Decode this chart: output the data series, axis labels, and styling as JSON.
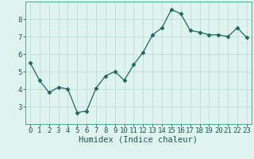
{
  "x": [
    0,
    1,
    2,
    3,
    4,
    5,
    6,
    7,
    8,
    9,
    10,
    11,
    12,
    13,
    14,
    15,
    16,
    17,
    18,
    19,
    20,
    21,
    22,
    23
  ],
  "y": [
    5.5,
    4.5,
    3.8,
    4.1,
    4.0,
    2.65,
    2.75,
    4.05,
    4.75,
    5.0,
    4.5,
    5.4,
    6.1,
    7.1,
    7.5,
    8.55,
    8.3,
    7.35,
    7.25,
    7.1,
    7.1,
    7.0,
    7.5,
    6.95
  ],
  "line_color": "#1a6b5e",
  "marker": "D",
  "marker_size": 2.5,
  "bg_color": "#dff3ef",
  "grid_color": "#c0ddd8",
  "xlabel": "Humidex (Indice chaleur)",
  "ylim": [
    2.0,
    9.0
  ],
  "xlim": [
    -0.5,
    23.5
  ],
  "yticks": [
    3,
    4,
    5,
    6,
    7,
    8
  ],
  "xticks": [
    0,
    1,
    2,
    3,
    4,
    5,
    6,
    7,
    8,
    9,
    10,
    11,
    12,
    13,
    14,
    15,
    16,
    17,
    18,
    19,
    20,
    21,
    22,
    23
  ],
  "tick_labelsize": 6.5,
  "xlabel_fontsize": 7.5,
  "spine_color": "#4a9080",
  "text_color": "#1a5a50"
}
